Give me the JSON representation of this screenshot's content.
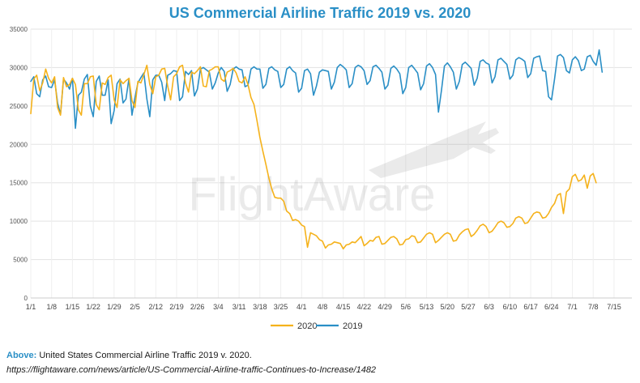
{
  "chart_data": {
    "type": "line",
    "title": "US Commercial Airline Traffic 2019 vs. 2020",
    "watermark": "FlightAware",
    "ylim": [
      0,
      35000
    ],
    "yticks": [
      0,
      5000,
      10000,
      15000,
      20000,
      25000,
      30000,
      35000
    ],
    "xlim": [
      1,
      203
    ],
    "xtick_labels": [
      "1/1",
      "1/8",
      "1/15",
      "1/22",
      "1/29",
      "2/5",
      "2/12",
      "2/19",
      "2/26",
      "3/4",
      "3/11",
      "3/18",
      "3/25",
      "4/1",
      "4/8",
      "4/15",
      "4/22",
      "4/29",
      "5/6",
      "5/13",
      "5/20",
      "5/27",
      "6/3",
      "6/10",
      "6/17",
      "6/24",
      "7/1",
      "7/8",
      "7/15"
    ],
    "xtick_days": [
      1,
      8,
      15,
      22,
      29,
      36,
      43,
      50,
      57,
      64,
      71,
      78,
      85,
      92,
      99,
      106,
      113,
      120,
      127,
      134,
      141,
      148,
      155,
      162,
      169,
      176,
      183,
      190,
      197
    ],
    "grid": true,
    "legend_position": "bottom-center",
    "series": [
      {
        "name": "2020",
        "color": "#f5b21b",
        "x_start_day": 1,
        "values": [
          24000,
          28500,
          29000,
          27000,
          28000,
          29800,
          28600,
          28000,
          28800,
          24800,
          23800,
          28700,
          27500,
          27800,
          28600,
          27800,
          24500,
          23800,
          27900,
          27900,
          28800,
          28900,
          25200,
          24500,
          28000,
          27800,
          28700,
          29000,
          25800,
          24800,
          28400,
          27900,
          28300,
          28600,
          25700,
          24800,
          28200,
          28000,
          29100,
          30300,
          27800,
          26600,
          28800,
          29000,
          29800,
          29900,
          27600,
          25800,
          28800,
          29200,
          30100,
          30300,
          28000,
          26800,
          29400,
          29200,
          29600,
          30100,
          27600,
          27500,
          29600,
          29800,
          30100,
          30100,
          28500,
          28200,
          29400,
          29600,
          29900,
          29300,
          28200,
          28000,
          28800,
          27800,
          26100,
          25200,
          23100,
          20900,
          19100,
          17400,
          15600,
          14200,
          13100,
          13000,
          13000,
          12600,
          11300,
          11000,
          10100,
          10200,
          10000,
          9500,
          9300,
          6600,
          8500,
          8300,
          8100,
          7600,
          7400,
          6500,
          6900,
          7000,
          7300,
          7200,
          7100,
          6400,
          6900,
          7000,
          7300,
          7200,
          7600,
          8000,
          6800,
          7100,
          7500,
          7400,
          7900,
          8000,
          7000,
          7100,
          7500,
          7900,
          8000,
          7700,
          6900,
          7000,
          7600,
          7700,
          8100,
          8000,
          7200,
          7300,
          7800,
          8300,
          8500,
          8300,
          7200,
          7500,
          7900,
          8300,
          8500,
          8300,
          7400,
          7500,
          8200,
          8600,
          8900,
          9000,
          8000,
          8300,
          8800,
          9400,
          9600,
          9300,
          8500,
          8700,
          9200,
          9800,
          10000,
          9800,
          9200,
          9300,
          9700,
          10400,
          10600,
          10400,
          9700,
          9800,
          10400,
          11000,
          11200,
          11100,
          10400,
          10500,
          11000,
          11800,
          12300,
          13400,
          13600,
          11000,
          13800,
          14200,
          15800,
          16100,
          15200,
          15400,
          16000,
          14300,
          15900,
          16200,
          15000
        ]
      },
      {
        "name": "2019",
        "color": "#2a8fc6",
        "x_start_day": 1,
        "values": [
          28200,
          28800,
          26600,
          26200,
          28400,
          28900,
          27500,
          27400,
          28400,
          25400,
          23900,
          28500,
          28000,
          27200,
          28600,
          22100,
          26400,
          26800,
          28500,
          29100,
          25000,
          23600,
          28200,
          28900,
          26400,
          26400,
          28400,
          22700,
          24400,
          27900,
          28500,
          25400,
          25900,
          28600,
          23800,
          26100,
          28000,
          28700,
          29300,
          25900,
          23600,
          28400,
          29000,
          29000,
          28100,
          25700,
          29000,
          29200,
          29600,
          29500,
          25700,
          26200,
          29500,
          29100,
          29600,
          26300,
          27200,
          29800,
          30000,
          29700,
          29400,
          27200,
          28000,
          29300,
          30000,
          29500,
          26900,
          27800,
          29800,
          30100,
          29800,
          29700,
          27500,
          27700,
          29800,
          30100,
          29800,
          29800,
          27300,
          27800,
          29900,
          30100,
          29700,
          29500,
          27400,
          27800,
          29800,
          30100,
          29600,
          29300,
          26800,
          27300,
          29600,
          29800,
          29200,
          26400,
          27600,
          29400,
          29700,
          29600,
          29500,
          27200,
          28100,
          30000,
          30400,
          30100,
          29700,
          27400,
          27900,
          30000,
          30300,
          30100,
          29600,
          27800,
          28300,
          30100,
          30300,
          29900,
          29400,
          27200,
          27700,
          29900,
          30200,
          29800,
          29200,
          26600,
          27400,
          30000,
          30300,
          29800,
          29300,
          27100,
          27900,
          30200,
          30500,
          30000,
          29100,
          24200,
          27000,
          30200,
          30600,
          30100,
          29400,
          27200,
          28200,
          30400,
          30700,
          30300,
          29900,
          27700,
          28600,
          30800,
          31000,
          30600,
          30400,
          28000,
          28800,
          31000,
          31200,
          30800,
          30400,
          28500,
          29000,
          31000,
          31300,
          31100,
          30800,
          28700,
          29200,
          31200,
          31400,
          31500,
          29600,
          29500,
          26200,
          25800,
          28500,
          31500,
          31700,
          31300,
          29600,
          29300,
          31000,
          31400,
          30900,
          29600,
          29800,
          31400,
          31600,
          30800,
          30300,
          32300,
          29400
        ]
      }
    ]
  },
  "caption": {
    "label": "Above:",
    "text": " United States Commercial Airline Traffic 2019 v. 2020.",
    "source": "https://flightaware.com/news/article/US-Commercial-Airline-traffic-Continues-to-Increase/1482"
  }
}
